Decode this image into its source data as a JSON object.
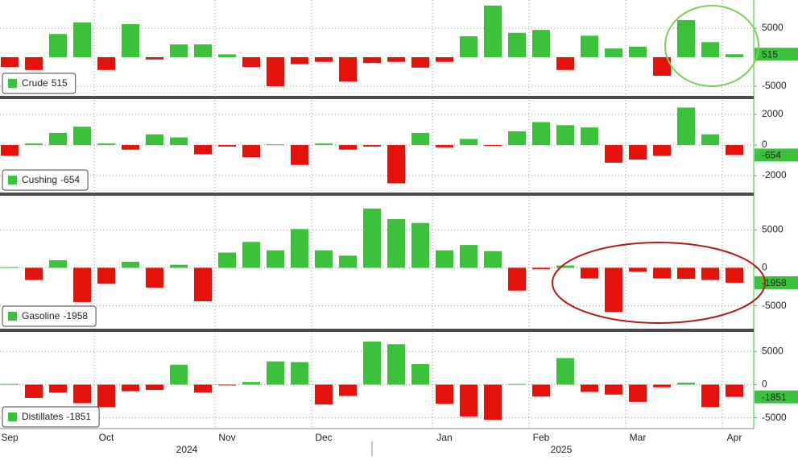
{
  "chart_data": [
    {
      "type": "bar",
      "series": [
        {
          "name": "Crude",
          "color": "#3cc13c",
          "negative_color": "#e5120c",
          "values": [
            -1700,
            -2200,
            4000,
            6000,
            -2200,
            5700,
            -400,
            2200,
            2200,
            500,
            -1700,
            -5000,
            -1200,
            -800,
            -4200,
            -1000,
            -800,
            -1800,
            -800,
            3600,
            8900,
            4200,
            4700,
            -2200,
            3700,
            1500,
            1800,
            -3200,
            6400,
            2600,
            515
          ]
        }
      ],
      "ylim": [
        -6530,
        9860
      ],
      "yticks": [
        -5000,
        5000
      ],
      "grid": true
    },
    {
      "type": "bar",
      "series": [
        {
          "name": "Cushing",
          "color": "#3cc13c",
          "negative_color": "#e5120c",
          "values": [
            -700,
            100,
            800,
            1200,
            100,
            -300,
            700,
            500,
            -600,
            -100,
            -800,
            50,
            -1300,
            100,
            -300,
            -100,
            -2500,
            800,
            -150,
            400,
            -50,
            900,
            1500,
            1300,
            1150,
            -1150,
            -950,
            -700,
            2450,
            700,
            -654
          ]
        }
      ],
      "ylim": [
        -3050,
        2950
      ],
      "yticks": [
        -2000,
        0,
        2000
      ],
      "grid": true
    },
    {
      "type": "bar",
      "series": [
        {
          "name": "Gasoline",
          "color": "#3cc13c",
          "negative_color": "#e5120c",
          "values": [
            100,
            -1600,
            1000,
            -4500,
            -2100,
            800,
            -2600,
            400,
            -4400,
            2000,
            3400,
            2300,
            5100,
            2300,
            1600,
            7800,
            6400,
            5900,
            2300,
            3000,
            2200,
            -3000,
            -200,
            300,
            -1400,
            -5800,
            -500,
            -1400,
            -1450,
            -1600,
            -1958
          ]
        }
      ],
      "ylim": [
        -7900,
        9370
      ],
      "yticks": [
        -5000,
        0,
        5000
      ],
      "grid": true
    },
    {
      "type": "bar",
      "series": [
        {
          "name": "Distillates",
          "color": "#3cc13c",
          "negative_color": "#e5120c",
          "values": [
            100,
            -2000,
            -1200,
            -2800,
            -3400,
            -1000,
            -800,
            3000,
            -1200,
            -100,
            400,
            3500,
            3400,
            -3000,
            -1700,
            6500,
            6100,
            3100,
            -2900,
            -4800,
            -5300,
            100,
            -1800,
            4000,
            -1100,
            -1500,
            -2600,
            -400,
            300,
            -3400,
            -1851
          ]
        }
      ],
      "ylim": [
        -6630,
        7830
      ],
      "yticks": [
        -5000,
        0,
        5000
      ],
      "grid": true
    }
  ],
  "x_axis": {
    "categories": [
      "Sep",
      null,
      null,
      null,
      "Oct",
      null,
      null,
      null,
      null,
      "Nov",
      null,
      null,
      null,
      "Dec",
      null,
      null,
      null,
      null,
      "Jan",
      null,
      null,
      null,
      "Feb",
      null,
      null,
      null,
      "Mar",
      null,
      null,
      null,
      "Apr"
    ],
    "years": [
      "2024",
      "2025"
    ]
  }
}
